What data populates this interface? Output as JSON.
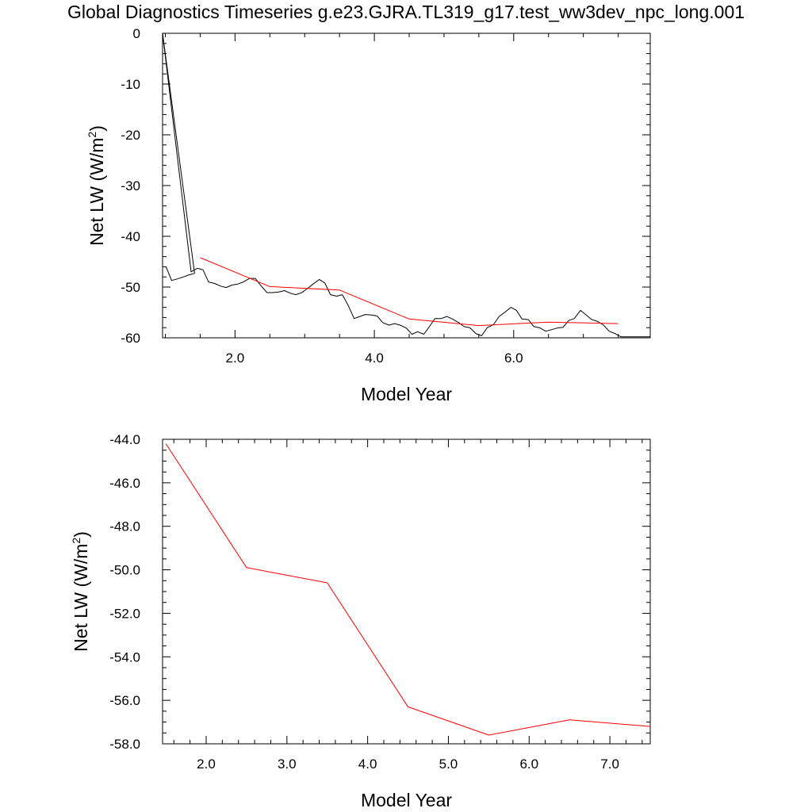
{
  "figure": {
    "title": "Global Diagnostics Timeseries g.e23.GJRA.TL319_g17.test_ww3dev_npc_long.001"
  },
  "colors": {
    "monthly": "#000000",
    "annual": "#ff0000"
  },
  "chart_data": [
    {
      "type": "line",
      "title": "",
      "xlabel": "Model Year",
      "ylabel": "Net LW (W/m",
      "ylabel_sup": "2",
      "ylabel_end": ")",
      "xlim": [
        0.96,
        7.96
      ],
      "ylim": [
        -60,
        0
      ],
      "xticks": [
        2.0,
        4.0,
        6.0
      ],
      "xtick_labels": [
        "2.0",
        "4.0",
        "6.0"
      ],
      "yticks": [
        0,
        -10,
        -20,
        -30,
        -40,
        -50,
        -60
      ],
      "ytick_labels": [
        "0",
        "-10",
        "-20",
        "-30",
        "-40",
        "-50",
        "-60"
      ],
      "series": [
        {
          "x": [
            0.96,
            1.37,
            1.46,
            1.54,
            1.62,
            1.71,
            1.79,
            1.87,
            1.96,
            2.04,
            2.12,
            2.21,
            2.29,
            2.37,
            2.46,
            2.54,
            2.62,
            2.71,
            2.79,
            2.87,
            2.96,
            3.04,
            3.12,
            3.21,
            3.29,
            3.37,
            3.46,
            3.54,
            3.62,
            3.71,
            3.79,
            3.87,
            3.96,
            4.04,
            4.12,
            4.21,
            4.29,
            4.37,
            4.46,
            4.54,
            4.62,
            4.71,
            4.79,
            4.87,
            4.96,
            5.04,
            5.12,
            5.21,
            5.29,
            5.37,
            5.46,
            5.54,
            5.62,
            5.71,
            5.79,
            5.87,
            5.96,
            6.04,
            6.12,
            6.21,
            6.29,
            6.37,
            6.46,
            6.54,
            6.62,
            6.71,
            6.79,
            6.87,
            6.96,
            7.04,
            7.12,
            7.21,
            7.29,
            7.37,
            7.46,
            7.54,
            7.62,
            7.71,
            7.79,
            7.87,
            7.96
          ],
          "values": [
            0,
            -47.0,
            -46.3,
            -46.6,
            -49.0,
            -49.3,
            -49.8,
            -50.1,
            -49.6,
            -49.4,
            -49.0,
            -48.3,
            -48.3,
            -49.7,
            -51.1,
            -51.1,
            -51.0,
            -50.7,
            -51.2,
            -51.5,
            -51.1,
            -50.3,
            -49.4,
            -48.5,
            -49.2,
            -51.5,
            -51.8,
            -51.5,
            -53.5,
            -56.2,
            -55.8,
            -55.4,
            -55.5,
            -55.7,
            -57.0,
            -57.5,
            -57.2,
            -57.5,
            -58.1,
            -59.3,
            -58.8,
            -59.3,
            -57.8,
            -56.2,
            -56.2,
            -55.8,
            -56.3,
            -57.0,
            -57.8,
            -58.0,
            -59.2,
            -59.6,
            -58.0,
            -57.4,
            -55.8,
            -55.0,
            -54.0,
            -54.6,
            -56.3,
            -56.4,
            -57.8,
            -58.0,
            -58.7,
            -58.4,
            -58.1,
            -57.9,
            -56.6,
            -56.2,
            -54.6,
            -55.5,
            -56.4,
            -56.8,
            -57.5,
            -58.7,
            -59.2,
            -59.8,
            -59.8,
            -59.8,
            -59.8,
            -59.8,
            -59.8
          ]
        },
        {
          "x": [
            1.01,
            1.09,
            1.17,
            1.26,
            1.34,
            1.42
          ],
          "values": [
            -46.0,
            -48.7,
            -48.4,
            -48.0,
            -47.6,
            -47.3
          ]
        },
        {
          "x": [
            0.96,
            1.42
          ],
          "values": [
            0,
            -47.3
          ]
        },
        {
          "x": [
            1.5,
            2.5,
            3.5,
            4.5,
            5.5,
            6.5,
            7.5
          ],
          "values": [
            -44.2,
            -49.9,
            -50.6,
            -56.3,
            -57.6,
            -56.9,
            -57.2
          ]
        }
      ]
    },
    {
      "type": "line",
      "title": "",
      "xlabel": "Model Year",
      "ylabel": "Net LW (W/m",
      "ylabel_sup": "2",
      "ylabel_end": ")",
      "xlim": [
        1.46,
        7.5
      ],
      "ylim": [
        -58.0,
        -44.0
      ],
      "xticks": [
        2.0,
        3.0,
        4.0,
        5.0,
        6.0,
        7.0
      ],
      "xtick_labels": [
        "2.0",
        "3.0",
        "4.0",
        "5.0",
        "6.0",
        "7.0"
      ],
      "yticks": [
        -44.0,
        -46.0,
        -48.0,
        -50.0,
        -52.0,
        -54.0,
        -56.0,
        -58.0
      ],
      "ytick_labels": [
        "-44.0",
        "-46.0",
        "-48.0",
        "-50.0",
        "-52.0",
        "-54.0",
        "-56.0",
        "-58.0"
      ],
      "series": [
        {
          "x": [
            1.5,
            2.5,
            3.5,
            4.5,
            5.5,
            6.5,
            7.5
          ],
          "values": [
            -44.2,
            -49.9,
            -50.6,
            -56.3,
            -57.6,
            -56.9,
            -57.2
          ]
        }
      ]
    }
  ]
}
